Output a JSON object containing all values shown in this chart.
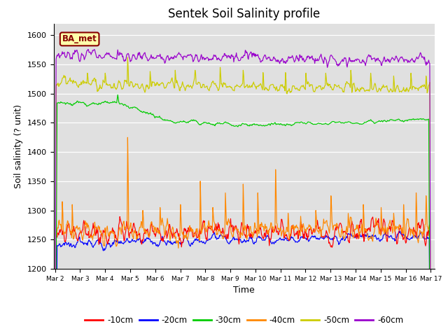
{
  "title": "Sentek Soil Salinity profile",
  "xlabel": "Time",
  "ylabel": "Soil salinity (? unit)",
  "ylim": [
    1200,
    1620
  ],
  "yticks": [
    1200,
    1250,
    1300,
    1350,
    1400,
    1450,
    1500,
    1550,
    1600
  ],
  "legend_labels": [
    "-10cm",
    "-20cm",
    "-30cm",
    "-40cm",
    "-50cm",
    "-60cm"
  ],
  "legend_colors": [
    "#ff0000",
    "#0000ff",
    "#00cc00",
    "#ff8800",
    "#cccc00",
    "#9900cc"
  ],
  "bg_color": "#e0e0e0",
  "annotation_text": "BA_met",
  "annotation_bg": "#ffffaa",
  "annotation_border": "#880000",
  "n_points": 720,
  "start_day": 2,
  "end_day": 17
}
